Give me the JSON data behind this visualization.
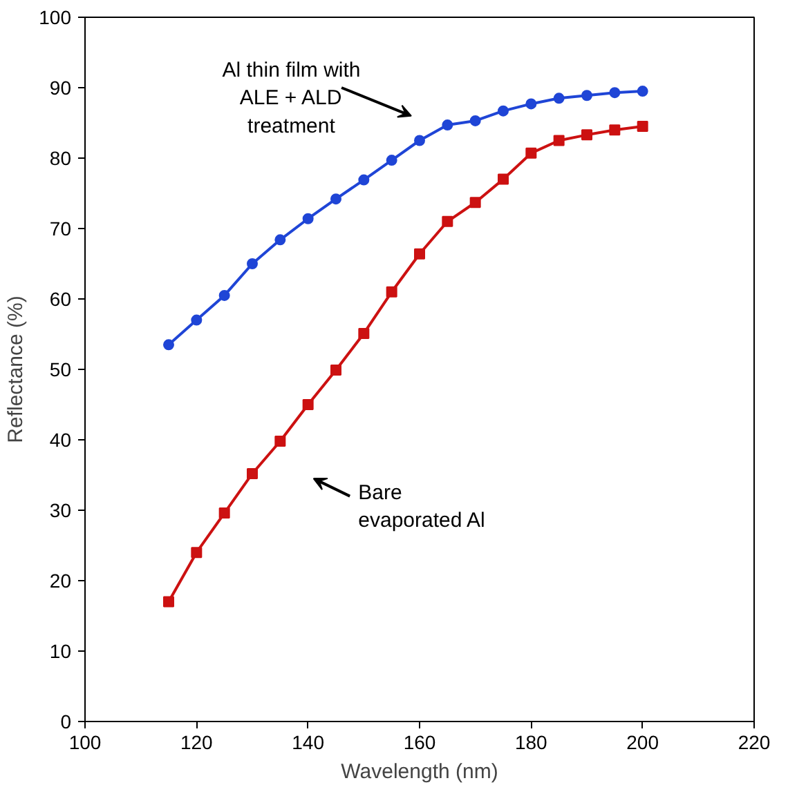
{
  "chart_data": {
    "type": "line",
    "xlabel": "Wavelength (nm)",
    "ylabel": "Reflectance (%)",
    "x": [
      115,
      120,
      125,
      130,
      135,
      140,
      145,
      150,
      155,
      160,
      165,
      170,
      175,
      180,
      185,
      190,
      195,
      200
    ],
    "series": [
      {
        "color": "#1f45d6",
        "marker": "circle",
        "values": [
          53.5,
          57,
          60.5,
          65,
          68.4,
          71.4,
          74.2,
          76.9,
          79.7,
          82.5,
          84.7,
          85.3,
          86.7,
          87.7,
          88.5,
          88.9,
          89.3,
          89.5
        ]
      },
      {
        "color": "#cc1111",
        "marker": "square",
        "values": [
          17,
          24,
          29.6,
          35.2,
          39.8,
          45,
          49.9,
          55.1,
          61,
          66.4,
          71,
          73.7,
          77,
          80.7,
          82.5,
          83.3,
          84,
          84.5
        ]
      }
    ],
    "xlim": [
      100,
      220
    ],
    "xticks": [
      100,
      120,
      140,
      160,
      180,
      200,
      220
    ],
    "ylim": [
      0,
      100
    ],
    "yticks": [
      0,
      10,
      20,
      30,
      40,
      50,
      60,
      70,
      80,
      90,
      100
    ],
    "grid": false,
    "line_style": "solid",
    "annotations": [
      "Al thin film with\nALE + ALD\ntreatment",
      "Bare\nevaporated Al"
    ]
  }
}
